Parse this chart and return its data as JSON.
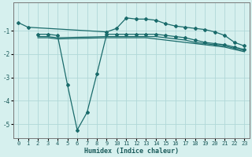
{
  "title": "",
  "xlabel": "Humidex (Indice chaleur)",
  "bg_color": "#d6f0ee",
  "grid_color": "#b0d8d8",
  "line_color": "#1a6b6b",
  "xlim": [
    -0.5,
    23.5
  ],
  "ylim": [
    -5.6,
    0.2
  ],
  "yticks": [
    -5,
    -4,
    -3,
    -2,
    -1
  ],
  "xticks": [
    0,
    1,
    2,
    3,
    4,
    5,
    6,
    7,
    8,
    9,
    10,
    11,
    12,
    13,
    14,
    15,
    16,
    17,
    18,
    19,
    20,
    21,
    22,
    23
  ],
  "series": [
    {
      "x": [
        0,
        1,
        9,
        10,
        11,
        12,
        13,
        14,
        15,
        16,
        17,
        18,
        19,
        20,
        21,
        22,
        23
      ],
      "y": [
        -0.65,
        -0.85,
        -1.05,
        -0.9,
        -0.45,
        -0.5,
        -0.5,
        -0.55,
        -0.7,
        -0.8,
        -0.85,
        -0.9,
        -0.95,
        -1.05,
        -1.2,
        -1.5,
        -1.65
      ],
      "marker": "D",
      "markersize": 2.0,
      "linewidth": 0.9
    },
    {
      "x": [
        2,
        3,
        4,
        5,
        6,
        7,
        8,
        9,
        10,
        11,
        12,
        13,
        14,
        15,
        16,
        17,
        18,
        19,
        20,
        21,
        22,
        23
      ],
      "y": [
        -1.15,
        -1.15,
        -1.2,
        -3.3,
        -5.25,
        -4.5,
        -2.85,
        -1.15,
        -1.15,
        -1.15,
        -1.15,
        -1.15,
        -1.15,
        -1.2,
        -1.25,
        -1.3,
        -1.4,
        -1.5,
        -1.55,
        -1.6,
        -1.7,
        -1.8
      ],
      "marker": "D",
      "markersize": 2.0,
      "linewidth": 0.9
    },
    {
      "x": [
        2,
        3,
        4,
        9,
        10,
        11,
        12,
        13,
        14,
        15,
        16,
        17,
        18,
        19,
        20,
        21,
        22,
        23
      ],
      "y": [
        -1.25,
        -1.25,
        -1.3,
        -1.25,
        -1.25,
        -1.25,
        -1.25,
        -1.25,
        -1.25,
        -1.3,
        -1.35,
        -1.4,
        -1.5,
        -1.55,
        -1.6,
        -1.65,
        -1.75,
        -1.85
      ],
      "marker": null,
      "markersize": 0,
      "linewidth": 0.9
    },
    {
      "x": [
        2,
        3,
        4,
        9,
        10,
        11,
        12,
        13,
        14,
        15,
        16,
        17,
        18,
        19,
        20,
        21,
        22,
        23
      ],
      "y": [
        -1.3,
        -1.3,
        -1.35,
        -1.3,
        -1.3,
        -1.3,
        -1.3,
        -1.3,
        -1.35,
        -1.4,
        -1.45,
        -1.5,
        -1.55,
        -1.6,
        -1.65,
        -1.7,
        -1.8,
        -1.9
      ],
      "marker": null,
      "markersize": 0,
      "linewidth": 0.9
    }
  ]
}
